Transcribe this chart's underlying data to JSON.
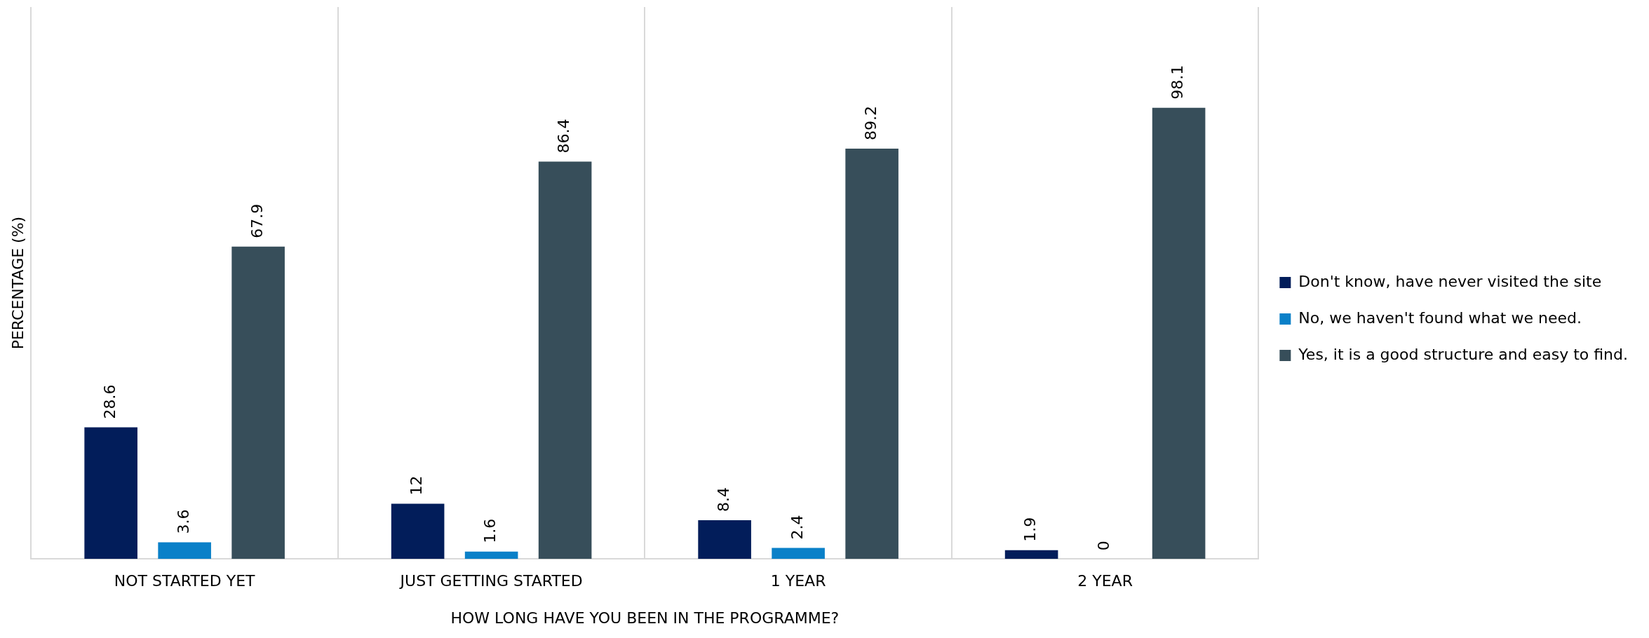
{
  "chart_data": {
    "type": "bar",
    "xlabel": "HOW LONG HAVE YOU BEEN IN THE PROGRAMME?",
    "ylabel": "PERCENTAGE (%)",
    "categories": [
      "NOT STARTED YET",
      "JUST GETTING STARTED",
      "1 YEAR",
      "2 YEAR"
    ],
    "series": [
      {
        "name": "Don't know, have never visited the site",
        "color": "#021d5a",
        "values": [
          28.6,
          12,
          8.4,
          1.9
        ]
      },
      {
        "name": "No, we haven't found what we need.",
        "color": "#0a80c8",
        "values": [
          3.6,
          1.6,
          2.4,
          0
        ]
      },
      {
        "name": "Yes, it is a good structure and easy to find.",
        "color": "#374e5a",
        "values": [
          67.9,
          86.4,
          89.2,
          98.1
        ]
      }
    ],
    "ylim": [
      0,
      120
    ],
    "data_labels": true,
    "grid": "x",
    "legend": "right",
    "tick_labels": "x"
  }
}
